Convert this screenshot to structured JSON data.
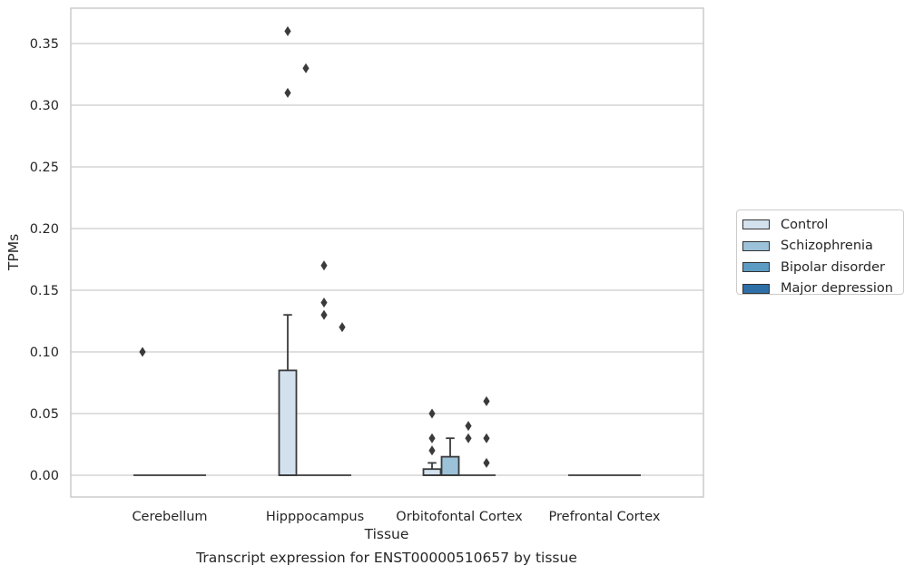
{
  "chart_data": {
    "type": "box",
    "title": "",
    "xlabel": "Tissue",
    "ylabel": "TPMs",
    "caption": "Transcript expression for ENST00000510657 by tissue",
    "ylim": [
      -0.017,
      0.38
    ],
    "yticks": [
      "0.00",
      "0.05",
      "0.10",
      "0.15",
      "0.20",
      "0.25",
      "0.30",
      "0.35"
    ],
    "ytick_values": [
      0,
      0.05,
      0.1,
      0.15,
      0.2,
      0.25,
      0.3,
      0.35
    ],
    "categories": [
      "Cerebellum",
      "Hipppocampus",
      "Orbitofontal Cortex",
      "Prefrontal Cortex"
    ],
    "grid": true,
    "legend_position": "right",
    "series": [
      {
        "name": "Control",
        "color": "#d3e0ee",
        "boxes": [
          {
            "q1": 0,
            "median": 0,
            "q3": 0,
            "whisker_low": 0,
            "whisker_high": 0,
            "outliers": [
              0.1
            ]
          },
          {
            "q1": 0,
            "median": 0,
            "q3": 0.085,
            "whisker_low": 0,
            "whisker_high": 0.13,
            "outliers": [
              0.36,
              0.31
            ]
          },
          {
            "q1": 0,
            "median": 0,
            "q3": 0.005,
            "whisker_low": 0,
            "whisker_high": 0.01,
            "outliers": [
              0.05,
              0.03,
              0.02
            ]
          },
          {
            "q1": 0,
            "median": 0,
            "q3": 0,
            "whisker_low": 0,
            "whisker_high": 0,
            "outliers": []
          }
        ]
      },
      {
        "name": "Schizophrenia",
        "color": "#9bc2d9",
        "boxes": [
          {
            "q1": 0,
            "median": 0,
            "q3": 0,
            "whisker_low": 0,
            "whisker_high": 0,
            "outliers": []
          },
          {
            "q1": 0,
            "median": 0,
            "q3": 0,
            "whisker_low": 0,
            "whisker_high": 0,
            "outliers": [
              0.33
            ]
          },
          {
            "q1": 0,
            "median": 0,
            "q3": 0.015,
            "whisker_low": 0,
            "whisker_high": 0.03,
            "outliers": []
          },
          {
            "q1": 0,
            "median": 0,
            "q3": 0,
            "whisker_low": 0,
            "whisker_high": 0,
            "outliers": []
          }
        ]
      },
      {
        "name": "Bipolar disorder",
        "color": "#5c9bc4",
        "boxes": [
          {
            "q1": 0,
            "median": 0,
            "q3": 0,
            "whisker_low": 0,
            "whisker_high": 0,
            "outliers": []
          },
          {
            "q1": 0,
            "median": 0,
            "q3": 0,
            "whisker_low": 0,
            "whisker_high": 0,
            "outliers": [
              0.17,
              0.14,
              0.13
            ]
          },
          {
            "q1": 0,
            "median": 0,
            "q3": 0,
            "whisker_low": 0,
            "whisker_high": 0,
            "outliers": [
              0.04,
              0.03
            ]
          },
          {
            "q1": 0,
            "median": 0,
            "q3": 0,
            "whisker_low": 0,
            "whisker_high": 0,
            "outliers": []
          }
        ]
      },
      {
        "name": "Major depression",
        "color": "#2e6fa8",
        "boxes": [
          {
            "q1": 0,
            "median": 0,
            "q3": 0,
            "whisker_low": 0,
            "whisker_high": 0,
            "outliers": []
          },
          {
            "q1": 0,
            "median": 0,
            "q3": 0,
            "whisker_low": 0,
            "whisker_high": 0,
            "outliers": [
              0.12
            ]
          },
          {
            "q1": 0,
            "median": 0,
            "q3": 0,
            "whisker_low": 0,
            "whisker_high": 0,
            "outliers": [
              0.06,
              0.03,
              0.01
            ]
          },
          {
            "q1": 0,
            "median": 0,
            "q3": 0,
            "whisker_low": 0,
            "whisker_high": 0,
            "outliers": []
          }
        ]
      }
    ]
  }
}
